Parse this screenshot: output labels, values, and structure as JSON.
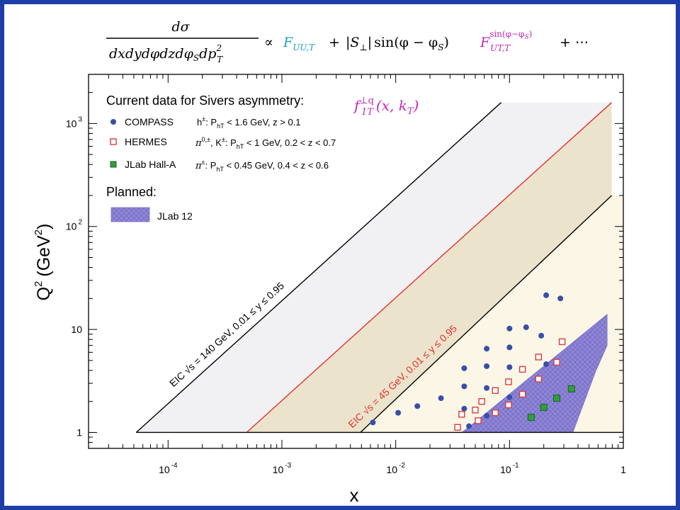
{
  "formula": {
    "numerator": "dσ",
    "denominator": "dxdydφdzdφ",
    "denominator_sub": "S",
    "denominator_tail": "dp",
    "denominator_tail_sup": "2",
    "denominator_tail_sub": "T",
    "propto": "∝",
    "term1": "F",
    "term1_sub": "UU,T",
    "plus1": "+",
    "term2_abs": "|S",
    "term2_abs_sub": "⊥",
    "term2_abs_close": "|",
    "term2_sin": "sin(φ − φ",
    "term2_sin_sub": "S",
    "term2_sin_close": ")",
    "term3": "F",
    "term3_sup": "sin(φ−φ",
    "term3_sup_sub": "S",
    "term3_sup_close": ")",
    "term3_sub": "UT,T",
    "tail": "+ ⋯"
  },
  "colors": {
    "frame": "#1e3fa8",
    "formula_teal": "#1aa3b5",
    "formula_magenta": "#c428b8",
    "eic140_band": "#f1f1f3",
    "eic45_band": "#ece3cc",
    "eic45_lower_band": "#fbf6e6",
    "eic45_line": "#e23030",
    "jlab12": "#8f86d6",
    "compass": "#3a4ea8",
    "hermes": "#dd3b3b",
    "jlab": "#2f9e3d"
  },
  "chart_data": {
    "type": "scatter",
    "xscale": "log",
    "yscale": "log",
    "xlim": [
      2e-05,
      1.0
    ],
    "ylim": [
      0.7,
      3000
    ],
    "xlabel": "x",
    "ylabel_main": "Q",
    "ylabel_sup": "2",
    "ylabel_unit_open": "(GeV",
    "ylabel_unit_sup": "2",
    "ylabel_unit_close": ")",
    "x_ticks": [
      {
        "value": 0.0001,
        "base": "10",
        "exp": "-4"
      },
      {
        "value": 0.001,
        "base": "10",
        "exp": "-3"
      },
      {
        "value": 0.01,
        "base": "10",
        "exp": "-2"
      },
      {
        "value": 0.1,
        "base": "10",
        "exp": "-1"
      },
      {
        "value": 1,
        "base": "1",
        "exp": ""
      }
    ],
    "y_ticks": [
      {
        "value": 1,
        "base": "1",
        "exp": ""
      },
      {
        "value": 10,
        "base": "10",
        "exp": ""
      },
      {
        "value": 100,
        "base": "10",
        "exp": "2"
      },
      {
        "value": 1000,
        "base": "10",
        "exp": "3"
      }
    ],
    "legend": {
      "title": "Current data for Sivers asymmetry:",
      "function_main": "f",
      "function_sup": "⊥q",
      "function_sub": "1T",
      "function_args": "(x, k",
      "function_args_sub": "T",
      "function_args_close": ")",
      "entries": [
        {
          "name": "COMPASS",
          "marker": "circle",
          "cuts_hadron": "h",
          "cuts_hadron_sup": "±",
          "cuts_text": ": P",
          "cuts_sub": "hT",
          "cuts_tail": " < 1.6 GeV,  z > 0.1"
        },
        {
          "name": "HERMES",
          "marker": "open-square",
          "cuts_hadron": "π",
          "cuts_hadron_sup": "0,±",
          "cuts_text": ", K",
          "cuts_k_sup": "±",
          "cuts_p": ": P",
          "cuts_sub": "hT",
          "cuts_tail": " < 1 GeV, 0.2 < z < 0.7"
        },
        {
          "name": "JLab Hall-A",
          "marker": "filled-square",
          "cuts_hadron": "π",
          "cuts_hadron_sup": "±",
          "cuts_text": ": P",
          "cuts_sub": "hT",
          "cuts_tail": " < 0.45 GeV,  0.4 < z < 0.6"
        }
      ],
      "planned_title": "Planned:",
      "planned_entries": [
        {
          "name": "JLab 12",
          "marker": "hatched-box"
        }
      ]
    },
    "eic_lines": [
      {
        "label": "EIC √s = 140 GeV, 0.01 ≤ y ≤ 0.95",
        "color": "#000000",
        "top": [
          [
            5.25e-05,
            1
          ],
          [
            0.0845,
            1600
          ]
        ],
        "bottom": null
      },
      {
        "label": "EIC √s = 45 GeV, 0.01 ≤ y ≤ 0.95",
        "color": "#e23030",
        "top": [
          [
            0.00049,
            1
          ],
          [
            0.79,
            1600
          ]
        ],
        "bottom": [
          [
            0.0049,
            1
          ],
          [
            0.79,
            200
          ]
        ]
      }
    ],
    "jlab12_region": [
      [
        0.038,
        1
      ],
      [
        0.36,
        1
      ],
      [
        0.57,
        3.9
      ],
      [
        0.72,
        7.0
      ],
      [
        0.72,
        14
      ],
      [
        0.045,
        1.15
      ]
    ],
    "series": [
      {
        "name": "COMPASS",
        "marker": "circle",
        "points": [
          [
            0.0063,
            1.25
          ],
          [
            0.0105,
            1.55
          ],
          [
            0.0155,
            1.8
          ],
          [
            0.025,
            2.15
          ],
          [
            0.04,
            1.7
          ],
          [
            0.04,
            2.8
          ],
          [
            0.04,
            4.2
          ],
          [
            0.044,
            1.15
          ],
          [
            0.063,
            1.45
          ],
          [
            0.063,
            2.7
          ],
          [
            0.063,
            4.4
          ],
          [
            0.063,
            6.5
          ],
          [
            0.1,
            2.2
          ],
          [
            0.1,
            4.3
          ],
          [
            0.1,
            6.7
          ],
          [
            0.1,
            10.2
          ],
          [
            0.14,
            10.5
          ],
          [
            0.19,
            8.7
          ],
          [
            0.21,
            4.6
          ],
          [
            0.21,
            21.5
          ],
          [
            0.28,
            20.0
          ]
        ]
      },
      {
        "name": "HERMES",
        "marker": "open-square",
        "points": [
          [
            0.035,
            1.12
          ],
          [
            0.038,
            1.5
          ],
          [
            0.05,
            1.65
          ],
          [
            0.053,
            1.3
          ],
          [
            0.057,
            2.0
          ],
          [
            0.075,
            1.55
          ],
          [
            0.075,
            2.55
          ],
          [
            0.098,
            1.85
          ],
          [
            0.098,
            3.1
          ],
          [
            0.13,
            2.35
          ],
          [
            0.13,
            4.1
          ],
          [
            0.18,
            3.3
          ],
          [
            0.18,
            5.4
          ],
          [
            0.26,
            4.8
          ],
          [
            0.29,
            7.6
          ]
        ]
      },
      {
        "name": "JLab Hall-A",
        "marker": "filled-square",
        "points": [
          [
            0.155,
            1.4
          ],
          [
            0.2,
            1.75
          ],
          [
            0.26,
            2.15
          ],
          [
            0.35,
            2.65
          ]
        ]
      }
    ]
  }
}
